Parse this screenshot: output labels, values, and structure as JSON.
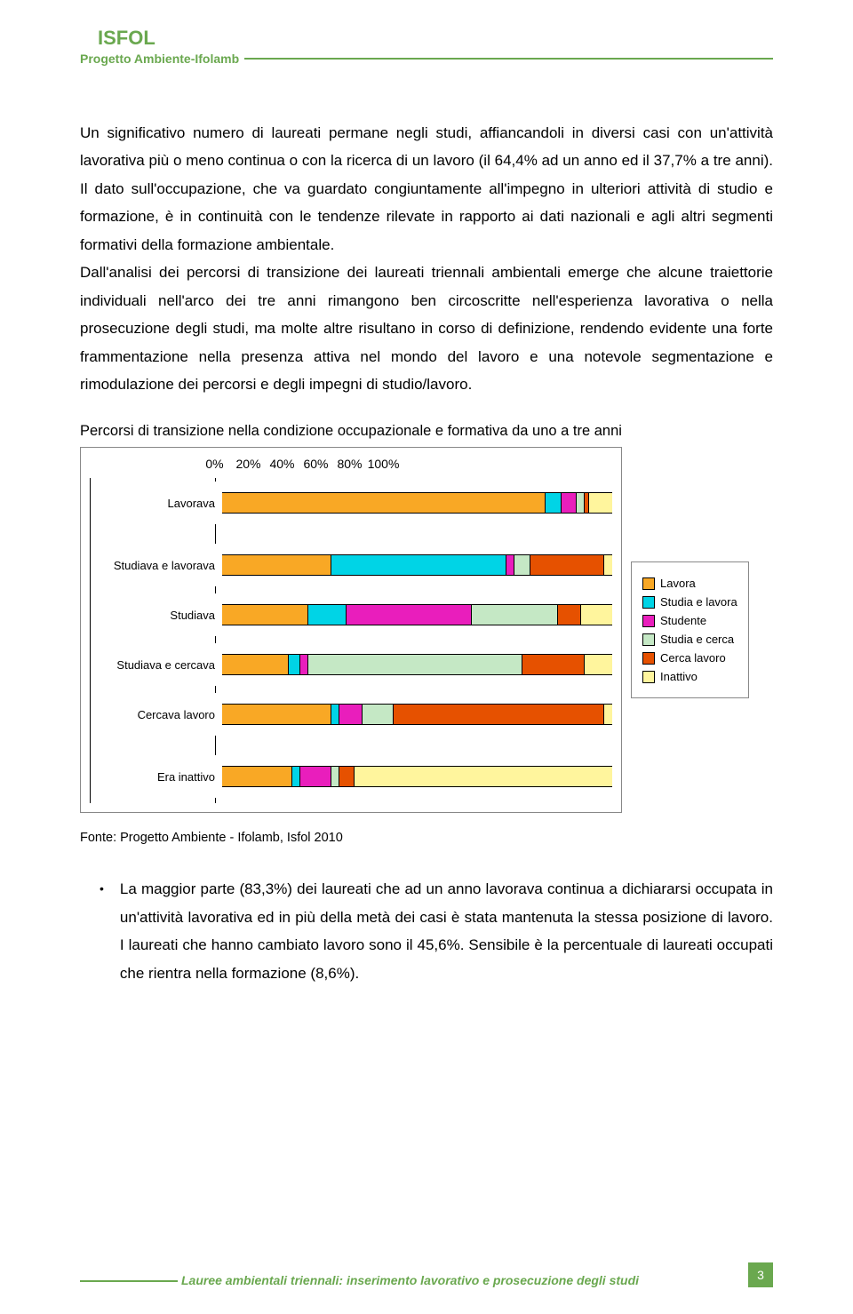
{
  "header": {
    "title": "ISFOL",
    "subtitle": "Progetto Ambiente-Ifolamb"
  },
  "paragraph1": "Un significativo numero di laureati permane negli studi, affiancandoli in diversi casi con un'attività lavorativa più o meno continua o con la ricerca di un lavoro (il 64,4% ad un anno ed il 37,7% a tre anni). Il dato sull'occupazione, che va guardato congiuntamente all'impegno in ulteriori attività di studio e formazione, è in continuità con le tendenze rilevate in rapporto ai dati nazionali e agli altri segmenti formativi della formazione ambientale.",
  "paragraph2": "Dall'analisi dei percorsi di transizione dei laureati triennali ambientali emerge che alcune traiettorie individuali nell'arco dei tre anni rimangono ben circoscritte nell'esperienza lavorativa o nella prosecuzione degli studi, ma molte altre risultano in corso di definizione, rendendo evidente una forte frammentazione nella presenza attiva nel mondo del lavoro e una notevole segmentazione e rimodulazione dei percorsi e degli impegni di studio/lavoro.",
  "chart": {
    "title": "Percorsi di transizione nella condizione occupazionale e formativa da uno a tre anni",
    "axis_ticks": [
      "0%",
      "20%",
      "40%",
      "60%",
      "80%",
      "100%"
    ],
    "colors": {
      "lavora": "#f9a825",
      "studia_lavora": "#00d4e6",
      "studente": "#e91ebc",
      "studia_cerca": "#c5e8c5",
      "cerca_lavoro": "#e65100",
      "inattivo": "#fff59d"
    },
    "categories": [
      {
        "label": "Lavorava",
        "segments": [
          {
            "color": "lavora",
            "pct": 83
          },
          {
            "color": "studia_lavora",
            "pct": 4
          },
          {
            "color": "studente",
            "pct": 4
          },
          {
            "color": "studia_cerca",
            "pct": 2
          },
          {
            "color": "cerca_lavoro",
            "pct": 1
          },
          {
            "color": "inattivo",
            "pct": 6
          }
        ]
      },
      {
        "label": "Studiava e lavorava",
        "segments": [
          {
            "color": "lavora",
            "pct": 28
          },
          {
            "color": "studia_lavora",
            "pct": 45
          },
          {
            "color": "studente",
            "pct": 2
          },
          {
            "color": "studia_cerca",
            "pct": 4
          },
          {
            "color": "cerca_lavoro",
            "pct": 19
          },
          {
            "color": "inattivo",
            "pct": 2
          }
        ]
      },
      {
        "label": "Studiava",
        "segments": [
          {
            "color": "lavora",
            "pct": 22
          },
          {
            "color": "studia_lavora",
            "pct": 10
          },
          {
            "color": "studente",
            "pct": 32
          },
          {
            "color": "studia_cerca",
            "pct": 22
          },
          {
            "color": "cerca_lavoro",
            "pct": 6
          },
          {
            "color": "inattivo",
            "pct": 8
          }
        ]
      },
      {
        "label": "Studiava e cercava",
        "segments": [
          {
            "color": "lavora",
            "pct": 17
          },
          {
            "color": "studia_lavora",
            "pct": 3
          },
          {
            "color": "studente",
            "pct": 2
          },
          {
            "color": "studia_cerca",
            "pct": 55
          },
          {
            "color": "cerca_lavoro",
            "pct": 16
          },
          {
            "color": "inattivo",
            "pct": 7
          }
        ]
      },
      {
        "label": "Cercava lavoro",
        "segments": [
          {
            "color": "lavora",
            "pct": 28
          },
          {
            "color": "studia_lavora",
            "pct": 2
          },
          {
            "color": "studente",
            "pct": 6
          },
          {
            "color": "studia_cerca",
            "pct": 8
          },
          {
            "color": "cerca_lavoro",
            "pct": 54
          },
          {
            "color": "inattivo",
            "pct": 2
          }
        ]
      },
      {
        "label": "Era inattivo",
        "segments": [
          {
            "color": "lavora",
            "pct": 18
          },
          {
            "color": "studia_lavora",
            "pct": 2
          },
          {
            "color": "studente",
            "pct": 8
          },
          {
            "color": "studia_cerca",
            "pct": 2
          },
          {
            "color": "cerca_lavoro",
            "pct": 4
          },
          {
            "color": "inattivo",
            "pct": 66
          }
        ]
      }
    ],
    "legend": [
      {
        "color": "lavora",
        "label": "Lavora"
      },
      {
        "color": "studia_lavora",
        "label": "Studia e lavora"
      },
      {
        "color": "studente",
        "label": "Studente"
      },
      {
        "color": "studia_cerca",
        "label": "Studia e cerca"
      },
      {
        "color": "cerca_lavoro",
        "label": "Cerca lavoro"
      },
      {
        "color": "inattivo",
        "label": "Inattivo"
      }
    ]
  },
  "source": "Fonte: Progetto Ambiente - Ifolamb, Isfol 2010",
  "bullet": "La maggior parte (83,3%) dei laureati che ad un anno lavorava continua a dichiararsi occupata in un'attività lavorativa ed in più della metà dei casi è stata mantenuta la stessa posizione di lavoro. I laureati che hanno cambiato lavoro sono il 45,6%. Sensibile è la percentuale di laureati occupati che rientra nella formazione (8,6%).",
  "footer": {
    "text": "Lauree ambientali triennali: inserimento lavorativo e prosecuzione degli studi",
    "page": "3"
  }
}
